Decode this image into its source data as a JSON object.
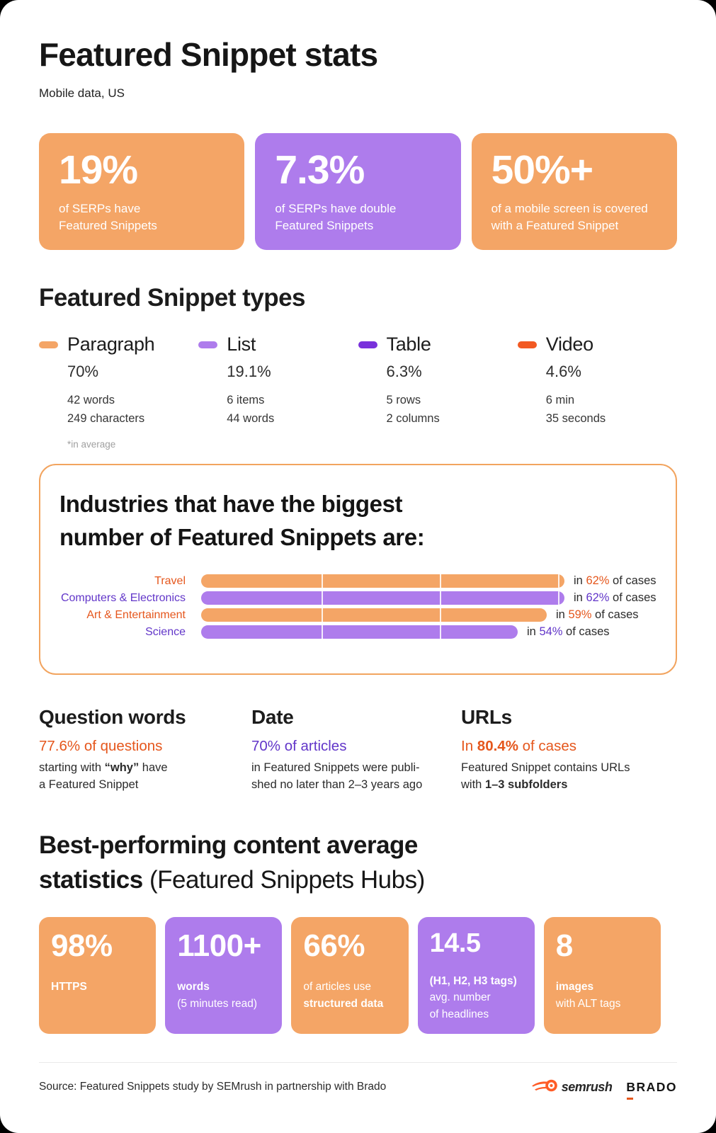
{
  "header": {
    "title": "Featured Snippet stats",
    "subtitle": "Mobile data, US"
  },
  "colors": {
    "orange": "#F4A566",
    "purple": "#AE7CEC",
    "deep_purple": "#7931DB",
    "red_orange": "#F25922",
    "accent_orange": "#E5571D",
    "accent_purple": "#6236C9"
  },
  "top_stats": [
    {
      "value": "19%",
      "lines": [
        "of SERPs have",
        "Featured Snippets"
      ],
      "color": "orange"
    },
    {
      "value": "7.3%",
      "lines": [
        "of SERPs have double",
        "Featured Snippets"
      ],
      "color": "purple"
    },
    {
      "value": "50%+",
      "lines": [
        "of a mobile screen is covered",
        "with a Featured Snippet"
      ],
      "color": "orange"
    }
  ],
  "types": {
    "heading": "Featured Snippet types",
    "note": "*in average",
    "items": [
      {
        "name": "Paragraph",
        "percent": "70%",
        "details": [
          "42 words",
          "249 characters"
        ],
        "color": "orange"
      },
      {
        "name": "List",
        "percent": "19.1%",
        "details": [
          "6 items",
          "44 words"
        ],
        "color": "purple"
      },
      {
        "name": "Table",
        "percent": "6.3%",
        "details": [
          "5 rows",
          "2 columns"
        ],
        "color": "deep-purple"
      },
      {
        "name": "Video",
        "percent": "4.6%",
        "details": [
          "6 min",
          "35 seconds"
        ],
        "color": "red-orange"
      }
    ]
  },
  "chart_data": {
    "type": "bar",
    "orientation": "horizontal",
    "title": "Industries that have the biggest number of Featured Snippets are:",
    "title_lines": [
      "Industries that have the biggest",
      "number of Featured Snippets are:"
    ],
    "categories": [
      "Travel",
      "Computers & Electronics",
      "Art & Entertainment",
      "Science"
    ],
    "values": [
      62,
      62,
      59,
      54
    ],
    "row_colors": [
      "orange",
      "purple",
      "orange",
      "purple"
    ],
    "xlim": [
      0,
      62
    ],
    "value_label_prefix": "in ",
    "value_label_suffix": " of cases",
    "value_unit": "%",
    "grid": false,
    "legend": false
  },
  "facts": [
    {
      "heading": "Question words",
      "lead_color": "orange",
      "lead": [
        {
          "t": "77.6% of questions",
          "b": false
        }
      ],
      "body": [
        [
          {
            "t": "starting with ",
            "b": false
          },
          {
            "t": "“why”",
            "b": true
          },
          {
            "t": " have",
            "b": false
          }
        ],
        [
          {
            "t": "a Featured Snippet",
            "b": false
          }
        ]
      ]
    },
    {
      "heading": "Date",
      "lead_color": "purple",
      "lead": [
        {
          "t": "70% of articles",
          "b": false
        }
      ],
      "body": [
        [
          {
            "t": "in Featured Snippets were publi-",
            "b": false
          }
        ],
        [
          {
            "t": "shed no later than 2–3 years ago",
            "b": false
          }
        ]
      ]
    },
    {
      "heading": "URLs",
      "lead_color": "orange",
      "lead": [
        {
          "t": "In ",
          "b": false
        },
        {
          "t": "80.4%",
          "b": true
        },
        {
          "t": " of cases",
          "b": false
        }
      ],
      "body": [
        [
          {
            "t": "Featured Snippet contains URLs",
            "b": false
          }
        ],
        [
          {
            "t": "with ",
            "b": false
          },
          {
            "t": "1–3 subfolders",
            "b": true
          }
        ]
      ]
    }
  ],
  "best": {
    "heading_line1": "Best-performing content average",
    "heading_line2_bold": "statistics",
    "heading_line2_normal": " (Featured Snippets Hubs)",
    "cards": [
      {
        "value": "98%",
        "lines": [
          {
            "t": "HTTPS",
            "b": true
          }
        ],
        "color": "orange"
      },
      {
        "value": "1100+",
        "lines": [
          {
            "t": "words",
            "b": true
          },
          {
            "t": "(5 minutes read)",
            "b": false
          }
        ],
        "color": "purple"
      },
      {
        "value": "66%",
        "lines": [
          {
            "t": "of articles use",
            "b": false
          },
          {
            "t": "structured data",
            "b": true
          }
        ],
        "color": "orange"
      },
      {
        "value": "14.5",
        "lines": [
          {
            "t": "(H1, H2, H3 tags)",
            "b": true
          },
          {
            "t": "avg. number",
            "b": false
          },
          {
            "t": "of headlines",
            "b": false
          }
        ],
        "color": "purple"
      },
      {
        "value": "8",
        "lines": [
          {
            "t": "images",
            "b": true
          },
          {
            "t": "with ALT tags",
            "b": false
          }
        ],
        "color": "orange"
      }
    ]
  },
  "footer": {
    "source": "Source: Featured Snippets study by SEMrush in partnership with Brado",
    "semrush": "semrush",
    "brado": "BRADO"
  }
}
